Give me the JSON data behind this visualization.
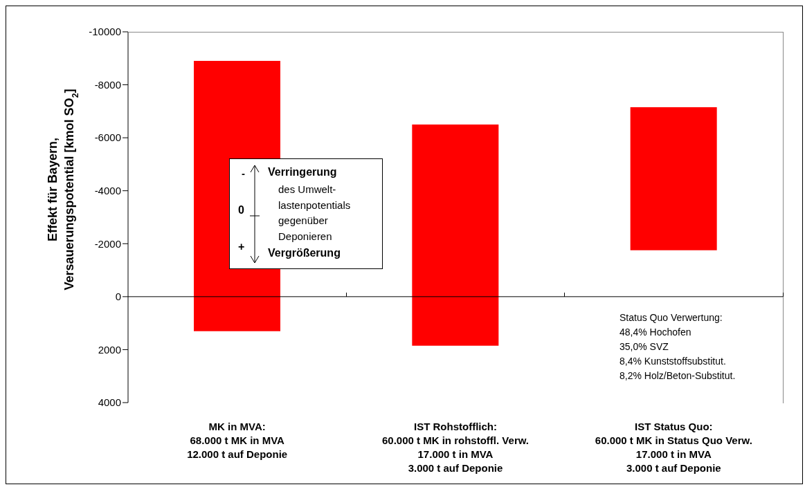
{
  "chart_data": {
    "type": "bar",
    "ylabel": "Effekt für Bayern,\nVersauerungspotential [kmol SO$_{2}$]",
    "categories": [
      "MK in MVA:\n68.000 t MK in MVA\n12.000 t auf Deponie",
      "IST Rohstofflich:\n60.000 t MK in rohstoffl. Verw.\n17.000 t in MVA\n3.000 t auf Deponie",
      "IST Status Quo:\n60.000 t MK in Status Quo Verw.\n17.000 t in MVA\n3.000 t auf Deponie"
    ],
    "values": [
      -10200,
      -8350,
      -5400
    ],
    "base": [
      1300,
      1850,
      -1750
    ],
    "color": "#ff0000",
    "ylim": [
      4000,
      -10000
    ],
    "yticks": [
      -10000,
      -8000,
      -6000,
      -4000,
      -2000,
      0,
      2000,
      4000
    ],
    "ref_lines": [
      {
        "axis": "y",
        "value": 0,
        "color": "#000000"
      }
    ],
    "annotations": [
      "-",
      "Verringerung",
      "des Umwelt-\nlastenpotentials\ngegenüber\nDeponieren",
      "0",
      "+",
      "Vergrößerung",
      "Status Quo Verwertung:\n48,4% Hochofen\n35,0% SVZ\n8,4% Kunststoffsubstitut.\n8,2% Holz/Beton-Substitut."
    ],
    "grid": false,
    "legend": false
  }
}
